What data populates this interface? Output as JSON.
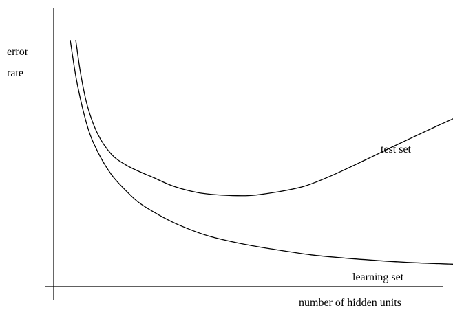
{
  "chart_data": {
    "type": "line",
    "title": "",
    "ylabel_line1": "error",
    "ylabel_line2": "rate",
    "xlabel": "number of hidden units",
    "grid": false,
    "legend": "none",
    "series": [
      {
        "name": "test set",
        "points": [
          [
            8,
            0.97
          ],
          [
            15,
            0.84
          ],
          [
            25,
            0.71
          ],
          [
            40,
            0.6
          ],
          [
            60,
            0.52
          ],
          [
            80,
            0.48
          ],
          [
            100,
            0.453
          ],
          [
            120,
            0.43
          ],
          [
            150,
            0.395
          ],
          [
            185,
            0.37
          ],
          [
            220,
            0.36
          ],
          [
            260,
            0.358
          ],
          [
            300,
            0.372
          ],
          [
            340,
            0.395
          ],
          [
            380,
            0.437
          ],
          [
            430,
            0.5
          ],
          [
            480,
            0.565
          ],
          [
            530,
            0.628
          ],
          [
            560,
            0.665
          ],
          [
            590,
            0.705
          ]
        ]
      },
      {
        "name": "learning set",
        "points": [
          [
            0,
            0.97
          ],
          [
            10,
            0.8
          ],
          [
            25,
            0.63
          ],
          [
            40,
            0.53
          ],
          [
            60,
            0.44
          ],
          [
            80,
            0.38
          ],
          [
            100,
            0.33
          ],
          [
            130,
            0.28
          ],
          [
            160,
            0.24
          ],
          [
            200,
            0.2
          ],
          [
            250,
            0.168
          ],
          [
            300,
            0.145
          ],
          [
            350,
            0.125
          ],
          [
            400,
            0.112
          ],
          [
            450,
            0.102
          ],
          [
            500,
            0.094
          ],
          [
            550,
            0.089
          ],
          [
            585,
            0.086
          ],
          [
            610,
            0.084
          ]
        ]
      }
    ]
  }
}
